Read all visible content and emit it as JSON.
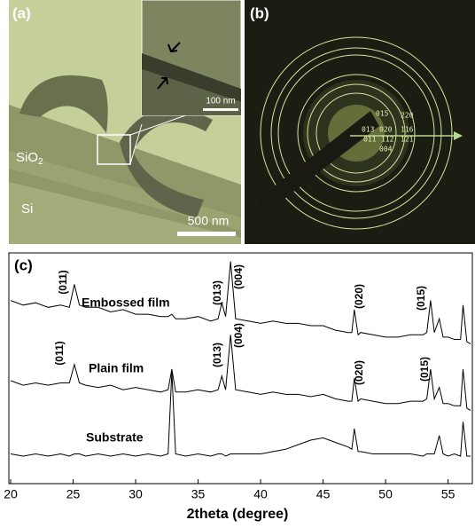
{
  "panels": {
    "a": {
      "label": "(a)",
      "sio2": "SiO",
      "sio2_sub": "2",
      "si": "Si",
      "scale_main": "500 nm",
      "scale_inset": "100 nm"
    },
    "b": {
      "label": "(b)",
      "indices": [
        "015",
        "220",
        "013",
        "020",
        "116",
        "011",
        "112",
        "121",
        "004"
      ]
    },
    "c": {
      "label": "(c)"
    }
  },
  "chart_data": {
    "type": "line",
    "xlabel": "2theta (degree)",
    "x": [
      20,
      21,
      22,
      23,
      24,
      24.7,
      25.1,
      25.5,
      26,
      27,
      28,
      29,
      30,
      31,
      32,
      32.6,
      32.9,
      33.2,
      34,
      35,
      36,
      36.6,
      36.9,
      37.2,
      37.6,
      38,
      39,
      40,
      41,
      42,
      43,
      44,
      45,
      46,
      47,
      47.3,
      47.5,
      47.8,
      48,
      49,
      50,
      51,
      52,
      53,
      53.3,
      53.6,
      53.9,
      54.3,
      54.6,
      55,
      55.5,
      56,
      56.2,
      56.5,
      56.8
    ],
    "series": [
      {
        "name": "Embossed film",
        "color": "#000000",
        "values": [
          80,
          78,
          79,
          77,
          78,
          77,
          87,
          78,
          77,
          77,
          75,
          76,
          74,
          74,
          73,
          73,
          74,
          72,
          72,
          73,
          71,
          72,
          79,
          73,
          97,
          72,
          71,
          70,
          71,
          70,
          70,
          69,
          69,
          67,
          66,
          66,
          76,
          65,
          66,
          65,
          64,
          64,
          65,
          65,
          66,
          80,
          66,
          72,
          64,
          64,
          63,
          63,
          78,
          62,
          61
        ]
      },
      {
        "name": "Plain film",
        "color": "#000000",
        "values": [
          45,
          43,
          44,
          43,
          44,
          44,
          52,
          44,
          43,
          42,
          43,
          41,
          42,
          41,
          40,
          41,
          50,
          40,
          40,
          41,
          40,
          41,
          47,
          41,
          65,
          41,
          40,
          39,
          40,
          39,
          39,
          38,
          39,
          37,
          36,
          36,
          46,
          36,
          37,
          36,
          35,
          35,
          36,
          36,
          37,
          50,
          37,
          42,
          35,
          35,
          34,
          34,
          50,
          33,
          32
        ]
      },
      {
        "name": "Substrate",
        "color": "#000000",
        "values": [
          13,
          12,
          13,
          12,
          13,
          12,
          13,
          13,
          12,
          13,
          12,
          13,
          12,
          13,
          12,
          13,
          49,
          13,
          12,
          13,
          12,
          13,
          13,
          12,
          13,
          13,
          13,
          13,
          14,
          15,
          17,
          19,
          20,
          18,
          16,
          15,
          24,
          14,
          14,
          13,
          13,
          13,
          13,
          12,
          13,
          13,
          13,
          21,
          13,
          12,
          13,
          12,
          27,
          12,
          12
        ]
      }
    ],
    "annotations": [
      "(011)",
      "(013)",
      "(004)",
      "(020)",
      "(015)",
      "(011)",
      "(013)",
      "(004)",
      "(020)",
      "(015)"
    ],
    "xlim": [
      20,
      56.8
    ],
    "ylim": [
      0,
      100
    ],
    "xticks": [
      20,
      25,
      30,
      35,
      40,
      45,
      50,
      55
    ]
  }
}
